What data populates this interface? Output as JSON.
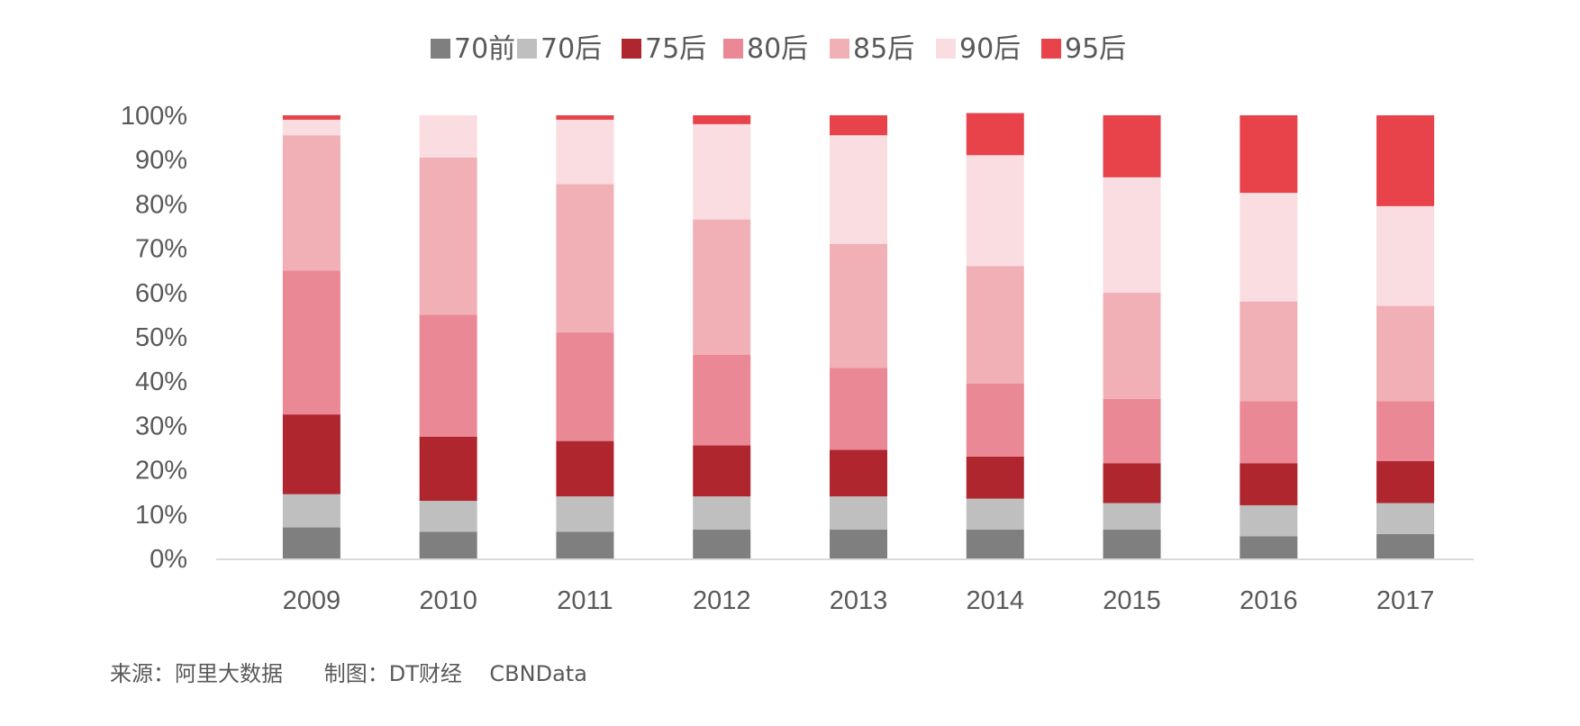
{
  "source_note": "来源：阿里大数据      制图：DT财经    CBNData",
  "colors": {
    "axis": "#d9d9d9",
    "text": "#595959"
  },
  "chart_data": {
    "type": "bar",
    "stacked": true,
    "percent": true,
    "title": "",
    "xlabel": "",
    "ylabel": "",
    "ylim": [
      0,
      100
    ],
    "yticks": [
      "0%",
      "10%",
      "20%",
      "30%",
      "40%",
      "50%",
      "60%",
      "70%",
      "80%",
      "90%",
      "100%"
    ],
    "categories": [
      "2009",
      "2010",
      "2011",
      "2012",
      "2013",
      "2014",
      "2015",
      "2016",
      "2017"
    ],
    "legend_position": "top-center",
    "grid": false,
    "series": [
      {
        "name": "70前",
        "color": "#7f7f7f",
        "values": [
          7,
          6,
          6,
          6.5,
          6.5,
          6.5,
          6.5,
          5,
          5.5
        ]
      },
      {
        "name": "70后",
        "color": "#bfbfbf",
        "values": [
          7.5,
          7,
          8,
          7.5,
          7.5,
          7,
          6,
          7,
          7
        ]
      },
      {
        "name": "75后",
        "color": "#b0262f",
        "values": [
          18,
          14.5,
          12.5,
          11.5,
          10.5,
          9.5,
          9,
          9.5,
          9.5
        ]
      },
      {
        "name": "80后",
        "color": "#ea8896",
        "values": [
          32.5,
          27.5,
          24.5,
          20.5,
          18.5,
          16.5,
          14.5,
          14,
          13.5
        ]
      },
      {
        "name": "85后",
        "color": "#f1b0b5",
        "values": [
          30.5,
          35.5,
          33.5,
          30.5,
          28,
          26.5,
          24,
          22.5,
          21.5
        ]
      },
      {
        "name": "90后",
        "color": "#f9dde1",
        "values": [
          3.5,
          9.5,
          14.5,
          21.5,
          24.5,
          25,
          26,
          24.5,
          22.5
        ]
      },
      {
        "name": "95后",
        "color": "#e8434b",
        "values": [
          1,
          0,
          1,
          2,
          4.5,
          9.5,
          14,
          17.5,
          20.5
        ]
      }
    ]
  }
}
